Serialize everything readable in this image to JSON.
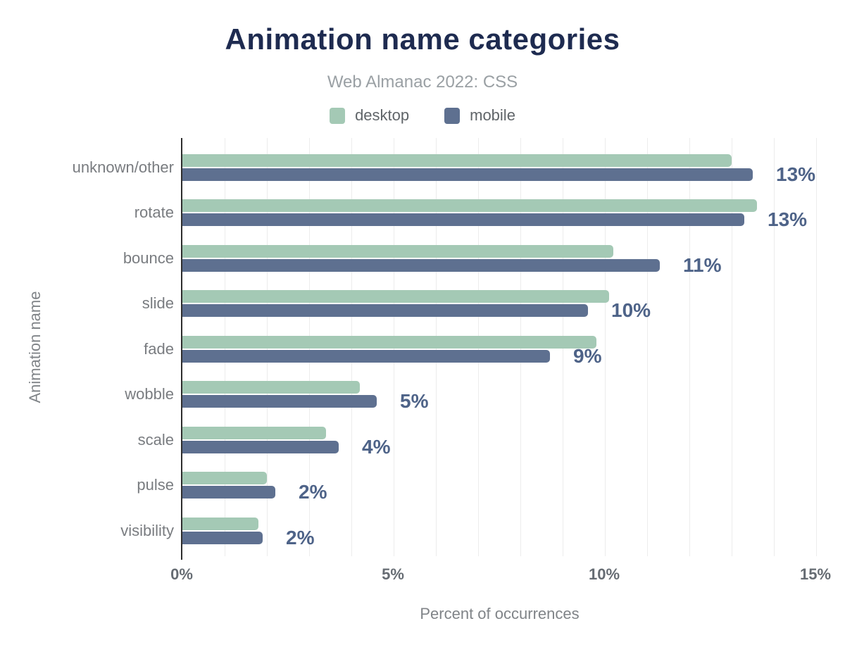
{
  "chart_data": {
    "type": "bar",
    "orientation": "horizontal",
    "title": "Animation name categories",
    "subtitle": "Web Almanac 2022: CSS",
    "categories": [
      "unknown/other",
      "rotate",
      "bounce",
      "slide",
      "fade",
      "wobble",
      "scale",
      "pulse",
      "visibility"
    ],
    "series": [
      {
        "name": "desktop",
        "color": "#a4c9b5",
        "values": [
          13.0,
          13.6,
          10.2,
          10.1,
          9.8,
          4.2,
          3.4,
          2.0,
          1.8
        ]
      },
      {
        "name": "mobile",
        "color": "#5e7090",
        "values": [
          13.5,
          13.3,
          11.3,
          9.6,
          8.7,
          4.6,
          3.7,
          2.2,
          1.9
        ]
      }
    ],
    "value_labels": [
      "13%",
      "13%",
      "11%",
      "10%",
      "9%",
      "5%",
      "4%",
      "2%",
      "2%"
    ],
    "xlabel": "Percent of occurrences",
    "ylabel": "Animation name",
    "x_ticks": [
      "0%",
      "5%",
      "10%",
      "15%"
    ],
    "x_tick_values": [
      0,
      5,
      10,
      15
    ],
    "xlim": [
      0,
      15
    ],
    "grid_step": 1,
    "grid": "vertical",
    "legend_position": "top"
  },
  "colors": {
    "background": "#ffffff",
    "title": "#1e2b50",
    "subtitle": "#9aa0a4",
    "desktop_bar": "#a4c9b5",
    "mobile_bar": "#5e7090",
    "value_label": "#4e6388",
    "category_label": "#797c80",
    "tick_label": "#666c73",
    "axis_title": "#808488",
    "axis_line": "#2e2e2e",
    "gridline": "#ececec"
  }
}
